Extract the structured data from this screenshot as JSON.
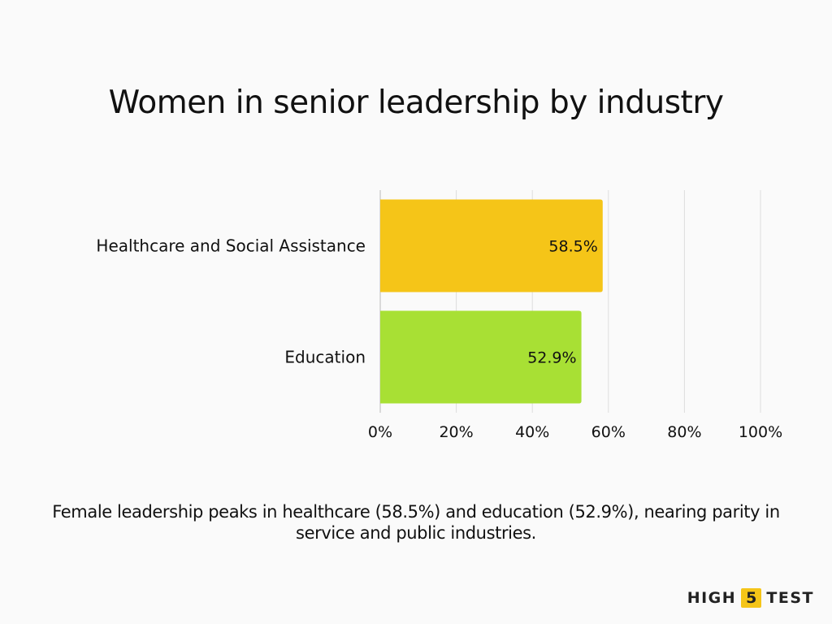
{
  "chart_data": {
    "type": "bar",
    "orientation": "horizontal",
    "title": "Women in senior leadership by industry",
    "categories": [
      "Healthcare and Social Assistance",
      "Education"
    ],
    "values": [
      58.5,
      52.9
    ],
    "data_labels": [
      "58.5%",
      "52.9%"
    ],
    "colors": [
      "#f5c518",
      "#a8e034"
    ],
    "xlim": [
      0,
      100
    ],
    "x_ticks": [
      0,
      20,
      40,
      60,
      80,
      100
    ],
    "x_tick_labels": [
      "0%",
      "20%",
      "40%",
      "60%",
      "80%",
      "100%"
    ],
    "grid": true,
    "legend": "none"
  },
  "caption": "Female leadership peaks in healthcare (58.5%) and education (52.9%), nearing parity in service and public industries.",
  "brand": {
    "left": "HIGH",
    "number": "5",
    "right": "TEST"
  }
}
